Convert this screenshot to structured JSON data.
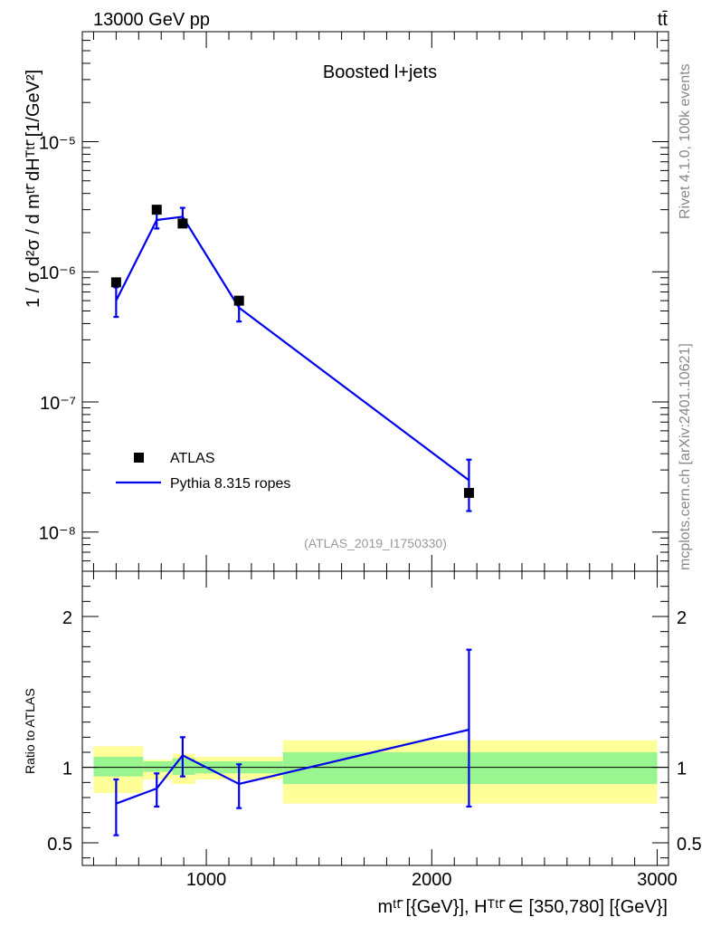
{
  "header": {
    "left": "13000 GeV pp",
    "right": "tt̄"
  },
  "side_labels": {
    "top": "Rivet 4.1.0,  100k events",
    "bottom": "mcplots.cern.ch [arXiv:2401.10621]"
  },
  "chart_data": {
    "type": "scatter",
    "title": "Boosted l+jets",
    "analysis_id": "(ATLAS_2019_I1750330)",
    "ylabel_main": "1 / σ d²σ / d mᵗᵗ̄ dHᵀᵗᵗ̄ [1/GeV²]",
    "ylabel_ratio": "Ratio to ATLAS",
    "xlabel": "mᵗᵗ̄ [{GeV}], Hᵀᵗᵗ̄ ∈ [350,780] [{GeV}]",
    "x_ticks": [
      "1000",
      "2000",
      "3000"
    ],
    "xlim": [
      450,
      3050
    ],
    "ylim_main": [
      5e-09,
      7e-05
    ],
    "ylim_ratio": [
      0.35,
      2.3
    ],
    "y_ticks_main": [
      "10⁻⁸",
      "10⁻⁷",
      "10⁻⁶",
      "10⁻⁵"
    ],
    "y_ticks_ratio": [
      "0.5",
      "1",
      "2"
    ],
    "legend": [
      "ATLAS",
      "Pythia 8.315 ropes"
    ],
    "bins": [
      {
        "lo": 500,
        "hi": 720
      },
      {
        "lo": 720,
        "hi": 850
      },
      {
        "lo": 850,
        "hi": 950
      },
      {
        "lo": 950,
        "hi": 1340
      },
      {
        "lo": 1340,
        "hi": 3000
      }
    ],
    "series": [
      {
        "name": "ATLAS",
        "x": [
          600,
          780,
          895,
          1145,
          2165
        ],
        "values": [
          8.3e-07,
          3e-06,
          2.35e-06,
          6e-07,
          2e-08
        ]
      },
      {
        "name": "Pythia 8.315 ropes",
        "x": [
          600,
          780,
          895,
          1145,
          2165
        ],
        "values": [
          6e-07,
          2.5e-06,
          2.65e-06,
          5.3e-07,
          2.5e-08
        ],
        "err_lo": [
          4.5e-07,
          2.15e-06,
          2.25e-06,
          4.15e-07,
          1.45e-08
        ],
        "err_hi": [
          7.6e-07,
          2.8e-06,
          3.1e-06,
          6.3e-07,
          3.6e-08
        ]
      }
    ],
    "ratio": {
      "values": [
        0.76,
        0.86,
        1.08,
        0.89,
        1.25
      ],
      "err_lo": [
        0.55,
        0.74,
        0.94,
        0.73,
        0.74
      ],
      "err_hi": [
        0.92,
        0.96,
        1.2,
        1.02,
        1.78
      ],
      "band_inner_lo": [
        0.94,
        0.97,
        0.95,
        0.96,
        0.89
      ],
      "band_inner_hi": [
        1.07,
        1.04,
        1.06,
        1.04,
        1.1
      ],
      "band_outer_lo": [
        0.83,
        0.92,
        0.89,
        0.92,
        0.76
      ],
      "band_outer_hi": [
        1.14,
        1.05,
        1.09,
        1.07,
        1.18
      ]
    },
    "colors": {
      "mc": "#0000ee",
      "data": "#000000",
      "band_inner": "#99f590",
      "band_outer": "#ffff99",
      "side_text": "#888888"
    }
  }
}
